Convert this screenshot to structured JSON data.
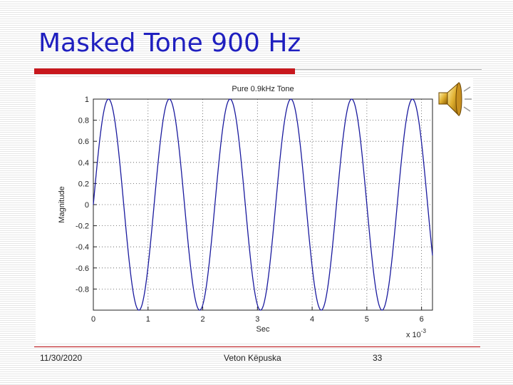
{
  "slide": {
    "title": "Masked Tone 900 Hz",
    "footer": {
      "date": "11/30/2020",
      "author": "Veton Këpuska",
      "page": "33"
    },
    "accent_color": "#c8171d",
    "title_color": "#1f1fbf"
  },
  "speaker": {
    "icon": "speaker-icon"
  },
  "chart_data": {
    "type": "line",
    "title": "Pure 0.9kHz Tone",
    "xlabel": "Sec",
    "ylabel": "Magnitude",
    "x_multiplier": "x 10",
    "x_multiplier_exp": "-3",
    "xlim": [
      0,
      0.0062
    ],
    "ylim": [
      -1,
      1
    ],
    "x_ticks": [
      0,
      1,
      2,
      3,
      4,
      5,
      6
    ],
    "x_tick_labels": [
      "0",
      "1",
      "2",
      "3",
      "4",
      "5",
      "6"
    ],
    "y_ticks": [
      1,
      0.8,
      0.6,
      0.4,
      0.2,
      0,
      -0.2,
      -0.4,
      -0.6,
      -0.8
    ],
    "y_tick_labels": [
      "1",
      "0.8",
      "0.6",
      "0.4",
      "0.2",
      "0",
      "-0.2",
      "-0.4",
      "-0.6",
      "-0.8"
    ],
    "grid": true,
    "series": [
      {
        "frequency_hz": 900,
        "amplitude": 1,
        "color": "#1a1a9e"
      }
    ]
  }
}
